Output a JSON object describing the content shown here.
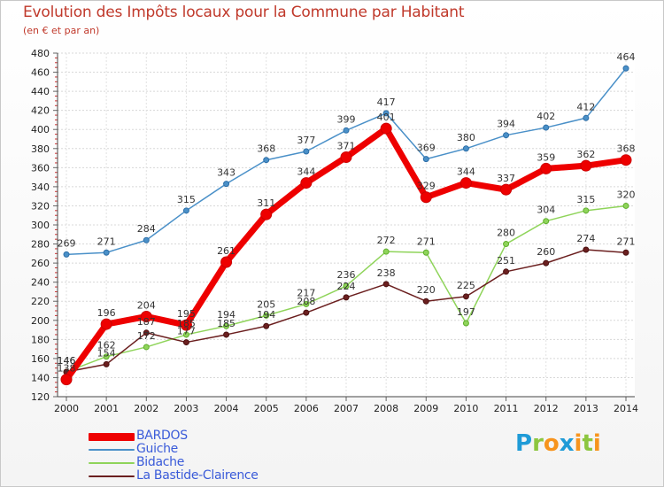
{
  "title": "Evolution des Impôts locaux pour la Commune par Habitant",
  "subtitle": "(en € et par an)",
  "logo": {
    "text": "Proxiti",
    "letters": [
      {
        "char": "P",
        "color": "#1f9bd7"
      },
      {
        "char": "r",
        "color": "#8cc63f"
      },
      {
        "char": "o",
        "color": "#f7941d"
      },
      {
        "char": "x",
        "color": "#1f9bd7"
      },
      {
        "char": "i",
        "color": "#f7941d"
      },
      {
        "char": "t",
        "color": "#8cc63f"
      },
      {
        "char": "i",
        "color": "#f7941d"
      }
    ]
  },
  "chart_data": {
    "type": "line",
    "title": "Evolution des Impôts locaux pour la Commune par Habitant",
    "subtitle": "(en € et par an)",
    "x": [
      2000,
      2001,
      2002,
      2003,
      2004,
      2005,
      2006,
      2007,
      2008,
      2009,
      2010,
      2011,
      2012,
      2013,
      2014
    ],
    "ylim": [
      120,
      480
    ],
    "yticks": [
      120,
      140,
      160,
      180,
      200,
      220,
      240,
      260,
      280,
      300,
      320,
      340,
      360,
      380,
      400,
      420,
      440,
      460,
      480
    ],
    "grid": true,
    "legend_position": "bottom-left",
    "series": [
      {
        "name": "BARDOS",
        "color": "#ee0000",
        "values": [
          138,
          196,
          204,
          195,
          261,
          311,
          344,
          371,
          401,
          329,
          344,
          337,
          359,
          362,
          368
        ]
      },
      {
        "name": "Guiche",
        "color": "#4a90c8",
        "values": [
          269,
          271,
          284,
          315,
          343,
          368,
          377,
          399,
          417,
          369,
          380,
          394,
          402,
          412,
          464
        ]
      },
      {
        "name": "Bidache",
        "color": "#8fd45a",
        "values": [
          146,
          162,
          172,
          185,
          194,
          205,
          217,
          236,
          272,
          271,
          197,
          280,
          304,
          315,
          320
        ]
      },
      {
        "name": "La Bastide-Clairence",
        "color": "#6b1f1f",
        "values": [
          146,
          154,
          187,
          177,
          185,
          194,
          208,
          224,
          238,
          220,
          225,
          251,
          260,
          274,
          271
        ]
      }
    ]
  }
}
